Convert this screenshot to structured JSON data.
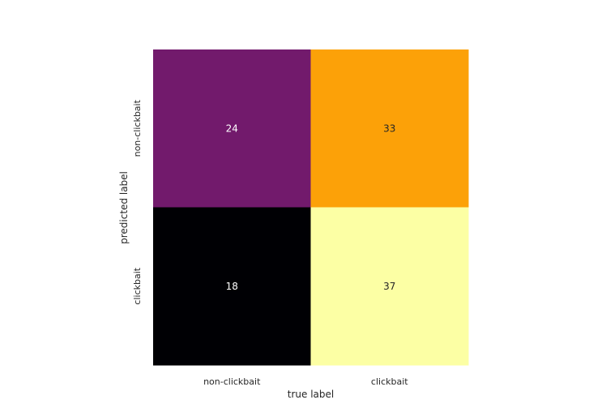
{
  "chart_data": {
    "type": "heatmap",
    "title": "",
    "xlabel": "true label",
    "ylabel": "predicted label",
    "x_categories": [
      "non-clickbait",
      "clickbait"
    ],
    "y_categories": [
      "non-clickbait",
      "clickbait"
    ],
    "values": [
      [
        24,
        33
      ],
      [
        18,
        37
      ]
    ],
    "colormap": "inferno",
    "cell_colors": [
      [
        "#721a6c",
        "#fca108"
      ],
      [
        "#000004",
        "#fcffa4"
      ]
    ],
    "label_colors": [
      [
        "#ffffff",
        "#262626"
      ],
      [
        "#ffffff",
        "#262626"
      ]
    ],
    "colorbar": false,
    "grid": false
  }
}
